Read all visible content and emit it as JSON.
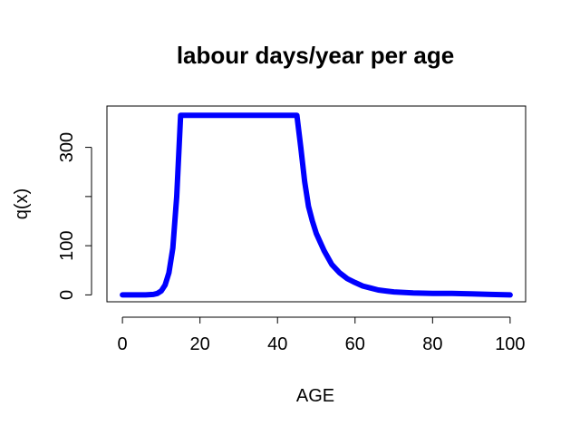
{
  "chart_data": {
    "type": "line",
    "title": "labour days/year per age",
    "xlabel": "AGE",
    "ylabel": "q(x)",
    "xlim": [
      -4,
      104
    ],
    "ylim": [
      -14,
      384
    ],
    "x_ticks": [
      0,
      20,
      40,
      60,
      80,
      100
    ],
    "y_ticks": [
      0,
      100,
      300
    ],
    "series_color": "#0000ff",
    "x": [
      0,
      2,
      4,
      6,
      8,
      9,
      10,
      11,
      12,
      13,
      14,
      15,
      20,
      25,
      30,
      35,
      40,
      45,
      46,
      47,
      48,
      49,
      50,
      52,
      54,
      56,
      58,
      60,
      62,
      64,
      66,
      68,
      70,
      75,
      80,
      85,
      90,
      95,
      100
    ],
    "y": [
      0,
      0,
      0,
      0,
      1,
      3,
      8,
      20,
      45,
      95,
      200,
      365,
      365,
      365,
      365,
      365,
      365,
      365,
      300,
      230,
      180,
      150,
      125,
      90,
      62,
      45,
      33,
      25,
      18,
      14,
      10,
      8,
      6,
      4,
      3,
      3,
      2,
      1,
      0
    ]
  }
}
